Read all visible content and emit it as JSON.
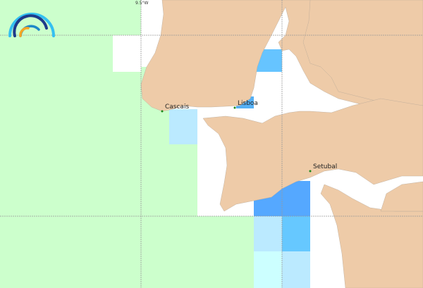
{
  "map": {
    "graticule_label": "9.5°W",
    "places": [
      {
        "name": "Cascais"
      },
      {
        "name": "Lisboa"
      },
      {
        "name": "Setubal"
      }
    ],
    "logo": "arc-waves-logo",
    "colors": {
      "land": "#eecba8",
      "water": "#ffffff",
      "class_green": "#ccffcc",
      "class_light_blue": "#bbeaff",
      "class_cyan": "#ccffff",
      "class_mid_blue": "#66c8ff",
      "class_blue": "#55a8ff",
      "place_dot": "#1a8a1a"
    }
  }
}
